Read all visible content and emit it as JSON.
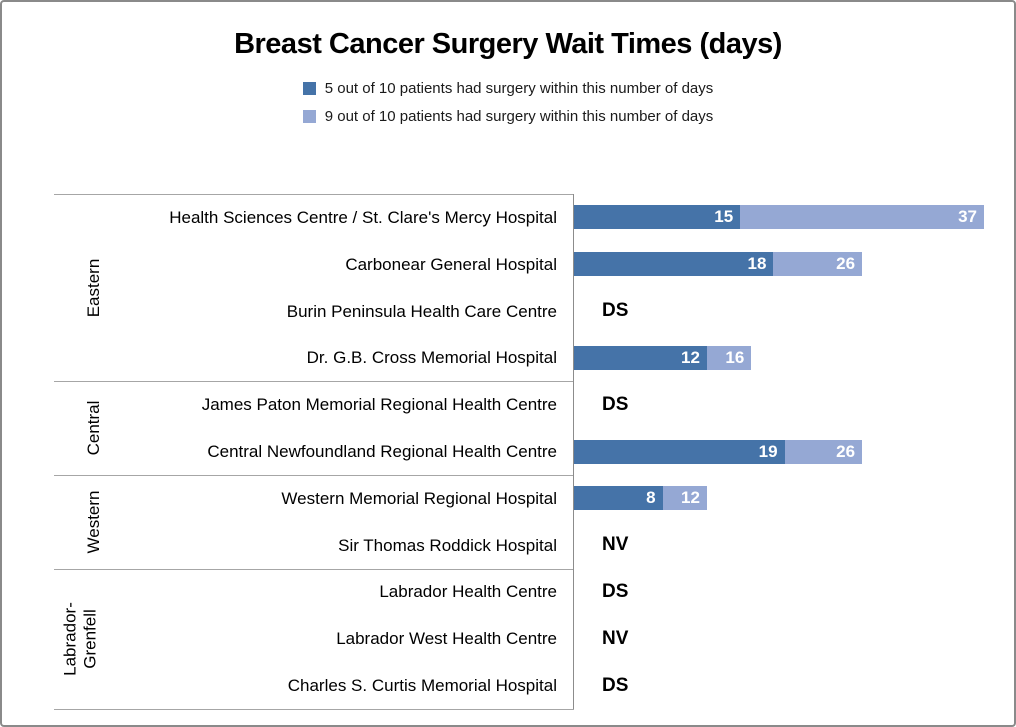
{
  "title": "Breast Cancer Surgery Wait Times (days)",
  "legend": [
    {
      "label": "5 out of 10 patients had surgery within this number of days",
      "color": "#4573a8"
    },
    {
      "label": "9 out of 10 patients had surgery within this number of days",
      "color": "#95a8d4"
    }
  ],
  "chart_data": {
    "type": "bar",
    "orientation": "horizontal",
    "title": "Breast Cancer Surgery Wait Times (days)",
    "series_names": [
      "5 out of 10 patients had surgery within this number of days",
      "9 out of 10 patients had surgery within this number of days"
    ],
    "colors": {
      "p50": "#4573a8",
      "p90": "#95a8d4"
    },
    "xlim": [
      0,
      40
    ],
    "grid": false,
    "legend_position": "top-center",
    "value_labels": "inside-end, white bold",
    "groups": [
      {
        "region": "Eastern",
        "rows": [
          {
            "hospital": "Health Sciences Centre / St. Clare's Mercy Hospital",
            "p50": 15,
            "p90": 37
          },
          {
            "hospital": "Carbonear General Hospital",
            "p50": 18,
            "p90": 26
          },
          {
            "hospital": "Burin Peninsula Health Care Centre",
            "note": "DS"
          },
          {
            "hospital": "Dr. G.B. Cross Memorial Hospital",
            "p50": 12,
            "p90": 16
          }
        ]
      },
      {
        "region": "Central",
        "rows": [
          {
            "hospital": "James Paton Memorial Regional Health Centre",
            "note": "DS"
          },
          {
            "hospital": "Central Newfoundland Regional Health Centre",
            "p50": 19,
            "p90": 26
          }
        ]
      },
      {
        "region": "Western",
        "rows": [
          {
            "hospital": "Western Memorial Regional Hospital",
            "p50": 8,
            "p90": 12
          },
          {
            "hospital": "Sir Thomas Roddick Hospital",
            "note": "NV"
          }
        ]
      },
      {
        "region": "Labrador-\nGrenfell",
        "rows": [
          {
            "hospital": "Labrador Health Centre",
            "note": "DS"
          },
          {
            "hospital": "Labrador West Health Centre",
            "note": "NV"
          },
          {
            "hospital": "Charles S. Curtis Memorial Hospital",
            "note": "DS"
          }
        ]
      }
    ]
  }
}
